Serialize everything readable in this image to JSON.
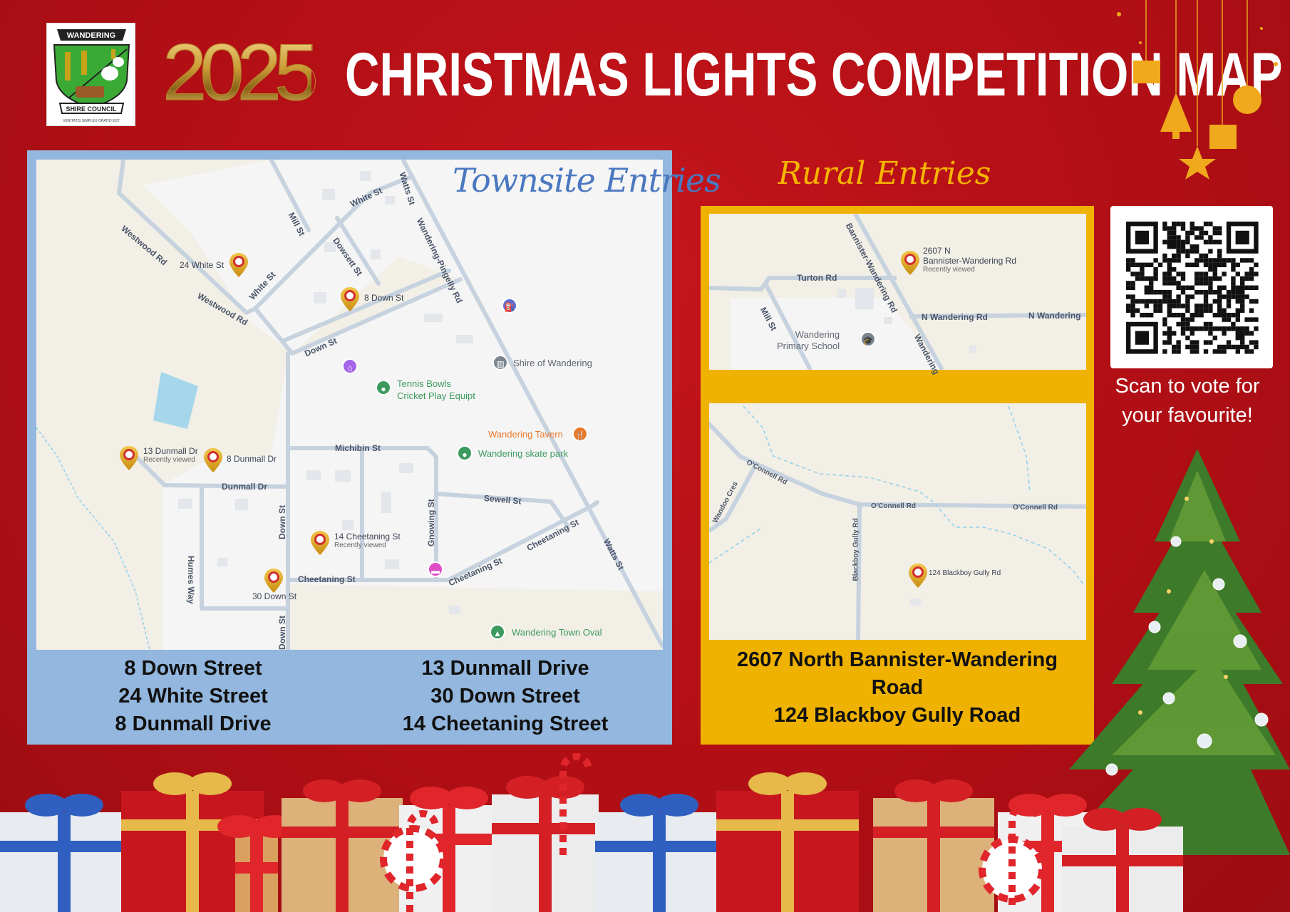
{
  "header": {
    "logo": {
      "top_text": "WANDERING",
      "bottom_text": "SHIRE COUNCIL",
      "motto": "VERITATIS SIMPLEX ORATIO EST"
    },
    "year": "2025",
    "title": "CHRISTMAS LIGHTS COMPETITION MAP"
  },
  "townsite": {
    "title": "Townsite Entries",
    "entries_left": [
      "8 Down Street",
      "24 White Street",
      "8 Dunmall Drive"
    ],
    "entries_right": [
      "13 Dunmall Drive",
      "30 Down Street",
      "14 Cheetaning Street"
    ],
    "map": {
      "pins": [
        {
          "label": "24 White St",
          "sub": ""
        },
        {
          "label": "8 Down St",
          "sub": ""
        },
        {
          "label": "13 Dunmall Dr",
          "sub": "Recently viewed"
        },
        {
          "label": "8 Dunmall Dr",
          "sub": ""
        },
        {
          "label": "14 Cheetaning St",
          "sub": "Recently viewed"
        },
        {
          "label": "30 Down St",
          "sub": ""
        }
      ],
      "roads": [
        "Westwood Rd",
        "Westwood Rd",
        "White St",
        "White St",
        "Mill St",
        "Dowsett St",
        "Watts St",
        "Wandering-Pingelly Rd",
        "Down St",
        "Down St",
        "Down St",
        "Michibin St",
        "Dunmall Dr",
        "Humes Way",
        "Sewell St",
        "Gnowing St",
        "Cheetaning St",
        "Cheetaning St",
        "Cheetaning St",
        "Watts St"
      ],
      "places": [
        {
          "name": "Shire of Wandering",
          "icon": "civic-building-icon",
          "color": "#7a8590"
        },
        {
          "name": "Tennis Bowls\nCricket Play Equipt",
          "icon": "park-icon",
          "color": "#3c9a5f"
        },
        {
          "name": "Wandering Tavern",
          "icon": "restaurant-icon",
          "color": "#e8792b"
        },
        {
          "name": "Wandering skate park",
          "icon": "park-icon",
          "color": "#3c9a5f"
        },
        {
          "name": "Wandering Town Oval",
          "icon": "tree-icon",
          "color": "#3c9a5f"
        }
      ]
    }
  },
  "rural": {
    "title": "Rural Entries",
    "entries": [
      "2607 North Bannister-Wandering",
      "Road",
      "124 Blackboy Gully Road"
    ],
    "map1": {
      "pin": {
        "line1": "2607 N",
        "line2": "Bannister-Wandering Rd",
        "sub": "Recently viewed"
      },
      "roads": [
        "Bannister-Wandering Rd",
        "Turton Rd",
        "Mill St",
        "N Wandering Rd",
        "N Wandering",
        "Wandering"
      ],
      "place": "Wandering\nPrimary School"
    },
    "map2": {
      "pin": {
        "label": "124 Blackboy Gully Rd"
      },
      "roads": [
        "O'Connell Rd",
        "O'Connell Rd",
        "O'Connell Rd",
        "Wandoo Cres",
        "Blackboy Gully Rd"
      ]
    }
  },
  "qr": {
    "caption": "Scan to vote for your favourite!"
  },
  "colors": {
    "background": "#b10f15",
    "townsite_panel": "#93b7de",
    "rural_panel": "#efb200",
    "gold": "#f5b400",
    "townsite_title": "#4a78c0",
    "pin": "#e0a920"
  }
}
